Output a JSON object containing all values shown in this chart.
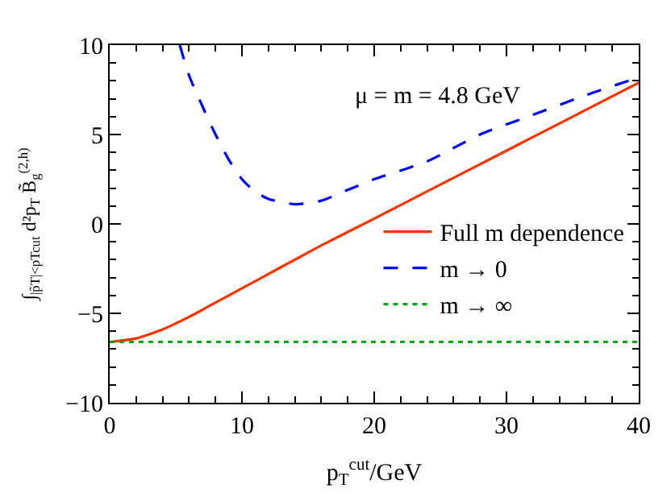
{
  "chart_data": {
    "type": "line",
    "xlabel": "p$_{T}$$^{cut}$/GeV",
    "ylabel": "∫$_{|p̃T|<pTcut}$ d²p$_{T}$ B̃$_{g}$$^{(2,h)}$",
    "annotations": [
      "μ = m = 4.8 GeV"
    ],
    "xlim": [
      0,
      40
    ],
    "xticks": [
      0,
      10,
      20,
      30,
      40
    ],
    "ylim": [
      -10,
      10
    ],
    "yticks": [
      -10,
      -5,
      0,
      5,
      10
    ],
    "legend": "bottom right",
    "marker": "none",
    "series": [
      {
        "name": "Full m dependence",
        "color": "#ff3300",
        "line_style": "solid",
        "x": [
          0,
          2,
          4,
          6,
          8,
          10,
          12,
          14,
          16,
          20,
          25,
          30,
          35,
          40
        ],
        "values": [
          -6.6,
          -6.4,
          -5.9,
          -5.2,
          -4.4,
          -3.6,
          -2.8,
          -2.0,
          -1.2,
          0.3,
          2.2,
          4.1,
          6.0,
          7.9
        ]
      },
      {
        "name": "m → 0",
        "color": "#0000ff",
        "line_style": "dashed",
        "x": [
          5.3,
          6,
          7,
          8,
          9,
          10,
          11,
          12,
          14,
          16,
          18,
          20,
          24,
          28,
          32,
          36,
          40
        ],
        "values": [
          10,
          8.3,
          6.6,
          5.0,
          3.6,
          2.5,
          1.8,
          1.4,
          1.1,
          1.3,
          1.9,
          2.5,
          3.5,
          5.0,
          6.1,
          7.2,
          8.2
        ]
      },
      {
        "name": "m → ∞",
        "color": "#00aa00",
        "line_style": "dotted",
        "x": [
          0,
          40
        ],
        "values": [
          -6.6,
          -6.6
        ]
      }
    ]
  }
}
